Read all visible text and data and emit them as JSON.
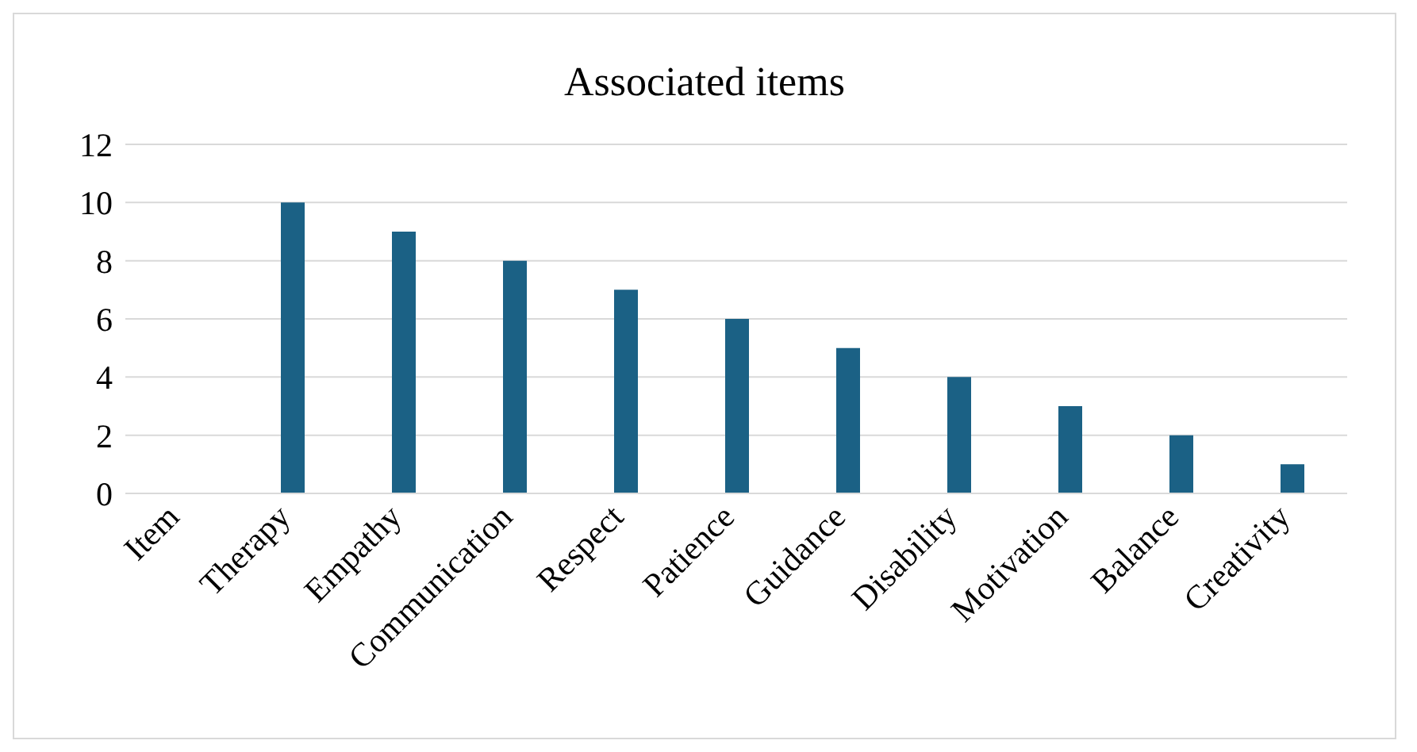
{
  "chart_data": {
    "type": "bar",
    "title": "Associated items",
    "categories": [
      "Item",
      "Therapy",
      "Empathy",
      "Communication",
      "Respect",
      "Patience",
      "Guidance",
      "Disability",
      "Motivation",
      "Balance",
      "Creativity"
    ],
    "values": [
      0,
      10,
      9,
      8,
      7,
      6,
      5,
      4,
      3,
      2,
      1
    ],
    "color": "#1b6185",
    "ylim": [
      0,
      12
    ],
    "yticks": [
      0,
      2,
      4,
      6,
      8,
      10,
      12
    ],
    "grid": "y"
  }
}
